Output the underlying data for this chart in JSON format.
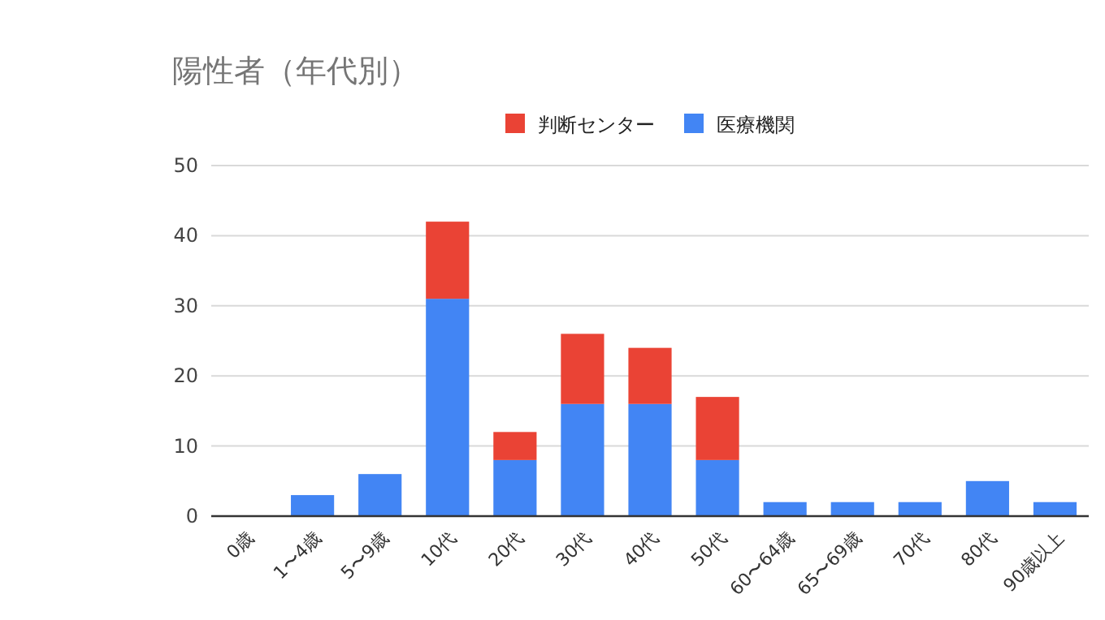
{
  "chart_data": {
    "type": "bar",
    "title": "陽性者（年代別）",
    "categories": [
      "0歳",
      "1〜4歳",
      "5〜9歳",
      "10代",
      "20代",
      "30代",
      "40代",
      "50代",
      "60〜64歳",
      "65〜69歳",
      "70代",
      "80代",
      "90歳以上"
    ],
    "series": [
      {
        "name": "医療機関",
        "color": "#4285f4",
        "values": [
          0,
          3,
          6,
          31,
          8,
          16,
          16,
          8,
          2,
          2,
          2,
          5,
          2
        ]
      },
      {
        "name": "判断センター",
        "color": "#ea4335",
        "values": [
          0,
          0,
          0,
          11,
          4,
          10,
          8,
          9,
          0,
          0,
          0,
          0,
          0
        ]
      }
    ],
    "stacked": true,
    "ylim": [
      0,
      50
    ],
    "yticks": [
      0,
      10,
      20,
      30,
      40,
      50
    ],
    "grid": "y",
    "legend": "top"
  }
}
